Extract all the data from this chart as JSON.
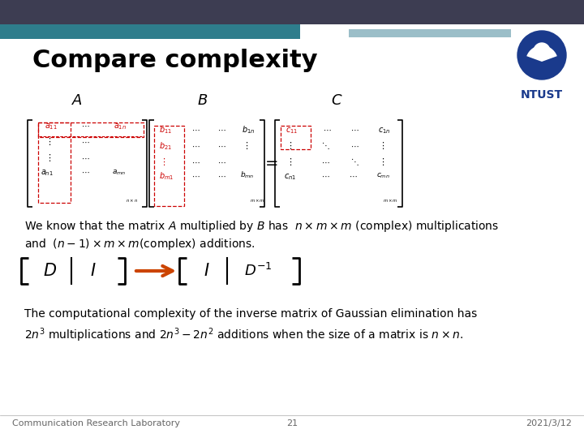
{
  "title": "Compare complexity",
  "bg_color": "#ffffff",
  "header_dark_color": "#3d3d52",
  "header_teal_color": "#2e7d8c",
  "header_lightblue_color": "#9bbec8",
  "title_fontsize": 22,
  "footer_left": "Communication Research Laboratory",
  "footer_center": "21",
  "footer_right": "2021/3/12",
  "footer_fontsize": 8,
  "footer_color": "#666666",
  "text_color": "#000000",
  "red_color": "#cc0000",
  "ntust_color": "#1a3a8c",
  "arrow_color": "#cc4400"
}
